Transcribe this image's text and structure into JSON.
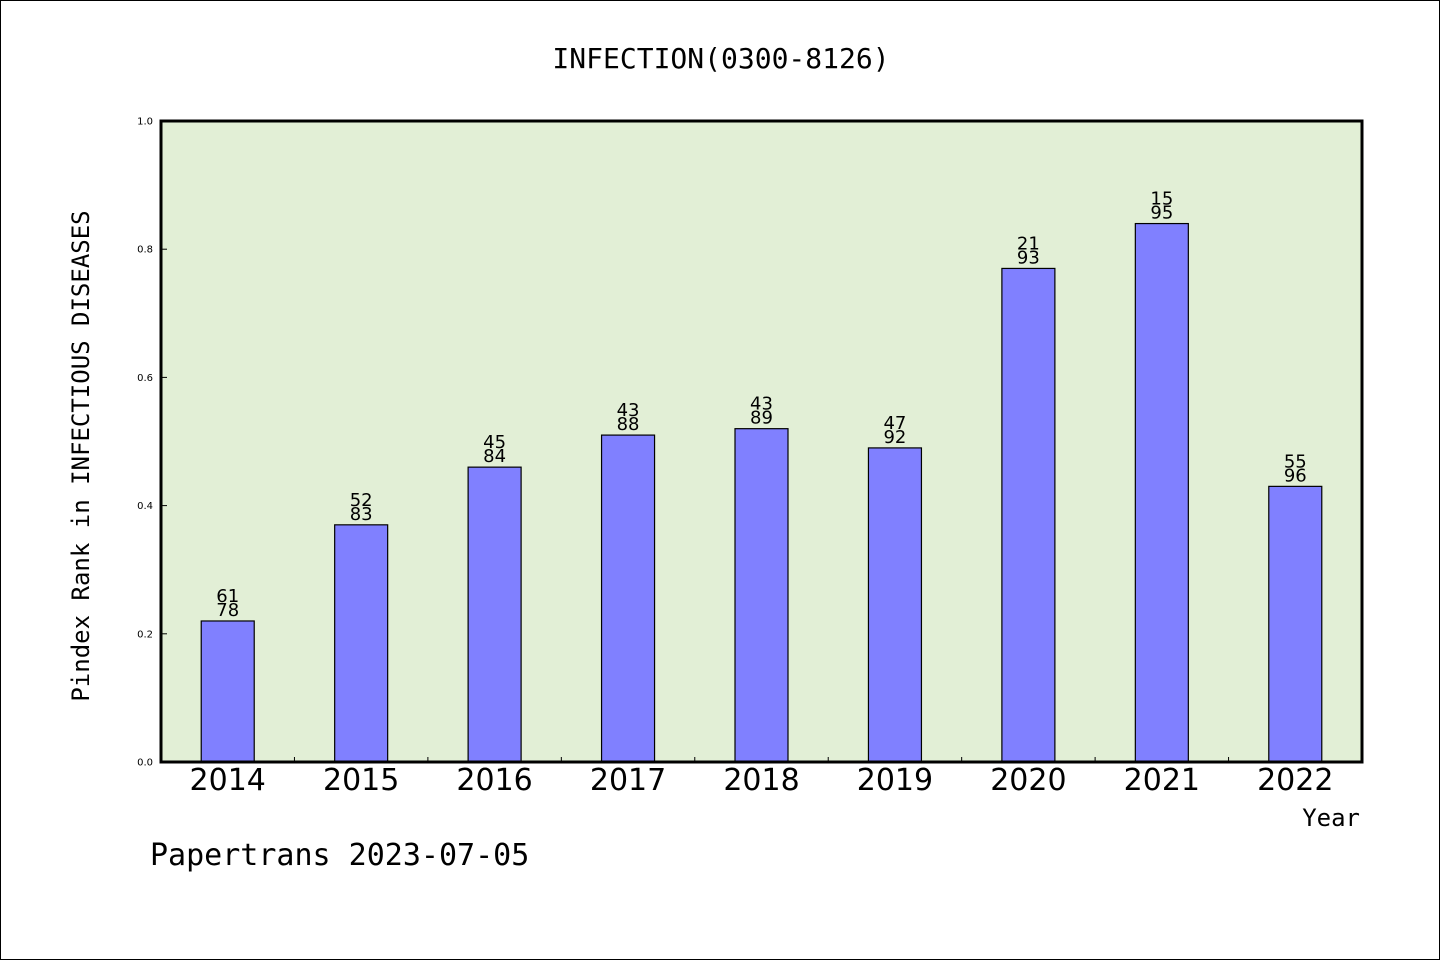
{
  "chart_data": {
    "type": "bar",
    "title": "INFECTION(0300-8126)",
    "xlabel": "Year",
    "ylabel": "Pindex Rank in INFECTIOUS DISEASES",
    "footer": "Papertrans 2023-07-05",
    "categories": [
      "2014",
      "2015",
      "2016",
      "2017",
      "2018",
      "2019",
      "2020",
      "2021",
      "2022"
    ],
    "values": [
      0.22,
      0.37,
      0.46,
      0.51,
      0.52,
      0.49,
      0.77,
      0.84,
      0.43
    ],
    "bar_labels": [
      [
        "61",
        "78"
      ],
      [
        "52",
        "83"
      ],
      [
        "45",
        "84"
      ],
      [
        "43",
        "88"
      ],
      [
        "43",
        "89"
      ],
      [
        "47",
        "92"
      ],
      [
        "21",
        "93"
      ],
      [
        "15",
        "95"
      ],
      [
        "55",
        "96"
      ]
    ],
    "ylim": [
      0,
      1.0
    ],
    "yticks": [
      "0.0",
      "0.2",
      "0.4",
      "0.6",
      "0.8",
      "1.0"
    ],
    "grid": false,
    "colors": {
      "plot_bg": "#e2efd6",
      "bar": "#8080ff",
      "edge": "#000000"
    }
  }
}
